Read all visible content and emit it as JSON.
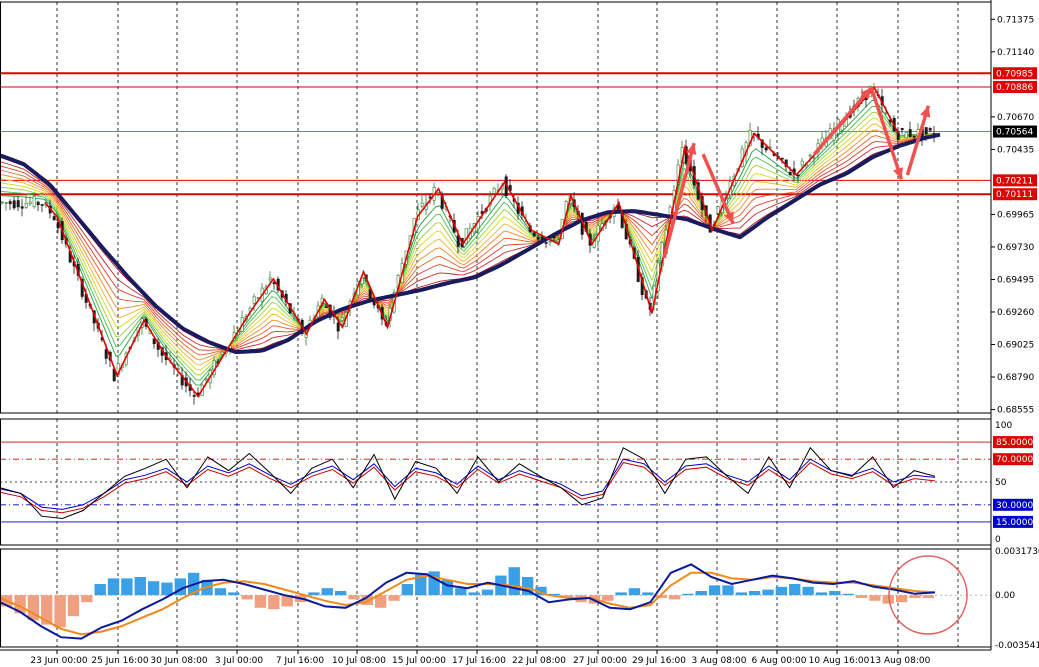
{
  "chart_data": {
    "type": "candlestick",
    "symbol_colors": {
      "background": "#ffffff",
      "bull_candle": "#2e7d32",
      "bear_candle": "#1b1b1b",
      "slow_ma": "#1a1a5e",
      "zigzag": "#e00000",
      "arrows": "#f05050",
      "level_line": "#e00000",
      "current_price_line": "#3355cc"
    },
    "x_ticks": [
      "23 Jun 00:00",
      "25 Jun 16:00",
      "30 Jun 08:00",
      "3 Jul 00:00",
      "7 Jul 16:00",
      "10 Jul 08:00",
      "15 Jul 00:00",
      "17 Jul 16:00",
      "22 Jul 08:00",
      "27 Jul 00:00",
      "29 Jul 16:00",
      "3 Aug 08:00",
      "6 Aug 00:00",
      "10 Aug 16:00",
      "13 Aug 08:00"
    ],
    "main_panel": {
      "y_ticks": [
        "0.71375",
        "0.71140",
        "0.70670",
        "0.70435",
        "0.69965",
        "0.69730",
        "0.69495",
        "0.69260",
        "0.69025",
        "0.68790",
        "0.68555"
      ],
      "ylim": [
        0.6853,
        0.715
      ],
      "levels": [
        {
          "label": "0.70985",
          "value": 0.70985
        },
        {
          "label": "0.70886",
          "value": 0.70886
        },
        {
          "label": "0.70211",
          "value": 0.70211
        },
        {
          "label": "0.70111",
          "value": 0.70111
        }
      ],
      "current_price": {
        "label": "0.70564",
        "value": 0.70564
      },
      "slow_ma": [
        0.704,
        0.7033,
        0.7018,
        0.6995,
        0.6972,
        0.695,
        0.693,
        0.6914,
        0.6904,
        0.6897,
        0.6898,
        0.6906,
        0.6919,
        0.6928,
        0.6934,
        0.6938,
        0.6942,
        0.6947,
        0.6951,
        0.696,
        0.6971,
        0.6982,
        0.6992,
        0.6998,
        0.6999,
        0.6996,
        0.6993,
        0.6986,
        0.698,
        0.6994,
        0.7006,
        0.7018,
        0.7026,
        0.7038,
        0.7046,
        0.7052,
        0.7056
      ],
      "zigzag": [
        [
          -0.2,
          0.7005
        ],
        [
          0.0,
          0.6995
        ],
        [
          1.0,
          0.688
        ],
        [
          1.45,
          0.692
        ],
        [
          1.8,
          0.6895
        ],
        [
          2.35,
          0.6865
        ],
        [
          3.2,
          0.6925
        ],
        [
          3.6,
          0.695
        ],
        [
          4.15,
          0.691
        ],
        [
          4.45,
          0.6935
        ],
        [
          4.75,
          0.6915
        ],
        [
          5.1,
          0.6955
        ],
        [
          5.5,
          0.6915
        ],
        [
          6.0,
          0.6995
        ],
        [
          6.35,
          0.7015
        ],
        [
          6.75,
          0.6975
        ],
        [
          7.45,
          0.702
        ],
        [
          7.9,
          0.6985
        ],
        [
          8.35,
          0.6975
        ],
        [
          8.55,
          0.701
        ],
        [
          8.9,
          0.6975
        ],
        [
          9.35,
          0.7005
        ],
        [
          9.9,
          0.6925
        ],
        [
          10.45,
          0.7045
        ],
        [
          10.9,
          0.6985
        ],
        [
          11.6,
          0.7055
        ],
        [
          12.3,
          0.7025
        ],
        [
          13.6,
          0.7088
        ],
        [
          14.0,
          0.7055
        ]
      ],
      "arrows": [
        {
          "from": [
            10.1,
            0.6965
          ],
          "to": [
            10.6,
            0.7048
          ]
        },
        {
          "from": [
            10.75,
            0.704
          ],
          "to": [
            11.25,
            0.699
          ]
        },
        {
          "from": [
            12.6,
            0.704
          ],
          "to": [
            13.55,
            0.7088
          ]
        },
        {
          "from": [
            13.55,
            0.7088
          ],
          "to": [
            14.05,
            0.7022
          ]
        },
        {
          "from": [
            14.15,
            0.7025
          ],
          "to": [
            14.5,
            0.7075
          ]
        }
      ]
    },
    "rsi_panel": {
      "y_ticks": [
        "100",
        "50",
        "0"
      ],
      "levels": [
        {
          "label": "85.0000",
          "value": 85,
          "color": "#e00000"
        },
        {
          "label": "70.0000",
          "value": 70,
          "color": "#e00000"
        },
        {
          "label": "30.0000",
          "value": 30,
          "color": "#0000cc"
        },
        {
          "label": "15.0000",
          "value": 15,
          "color": "#0000cc"
        }
      ],
      "fast": [
        45,
        40,
        20,
        18,
        25,
        40,
        55,
        62,
        70,
        45,
        72,
        60,
        75,
        58,
        40,
        62,
        70,
        45,
        74,
        35,
        68,
        62,
        40,
        72,
        50,
        66,
        55,
        45,
        30,
        36,
        80,
        70,
        40,
        70,
        72,
        55,
        40,
        72,
        45,
        80,
        60,
        55,
        72,
        45,
        60,
        55
      ],
      "slow": [
        44,
        40,
        28,
        26,
        30,
        40,
        52,
        56,
        62,
        50,
        64,
        58,
        66,
        56,
        48,
        58,
        64,
        52,
        66,
        46,
        62,
        58,
        48,
        64,
        52,
        60,
        54,
        48,
        38,
        42,
        70,
        66,
        50,
        64,
        66,
        56,
        50,
        64,
        52,
        70,
        60,
        56,
        62,
        50,
        56,
        54
      ]
    },
    "macd_panel": {
      "y_ticks": [
        "0.0031736",
        "0.00",
        "-0.003541"
      ],
      "ylim": [
        -0.0037,
        0.0033
      ],
      "histogram": [
        -0.0008,
        -0.0013,
        -0.0018,
        -0.0021,
        -0.0023,
        -0.0015,
        -0.0005,
        0.0008,
        0.0012,
        0.0012,
        0.0013,
        0.001,
        0.0009,
        0.0012,
        0.0016,
        0.0011,
        0.0005,
        0.0002,
        -0.0003,
        -0.0009,
        -0.001,
        -0.0008,
        -0.0005,
        0.0002,
        0.0005,
        0.0003,
        -0.0003,
        -0.0007,
        -0.0009,
        -0.0004,
        0.0008,
        0.0015,
        0.0017,
        0.0011,
        0.0005,
        0.0002,
        0.0004,
        0.0014,
        0.002,
        0.0013,
        0.0006,
        0.0001,
        -0.0002,
        -0.0005,
        -0.0006,
        -0.0004,
        0.0002,
        0.0005,
        0.0002,
        -0.0002,
        -0.0003,
        0.0001,
        0.0003,
        0.0007,
        0.0007,
        0.0002,
        0.0003,
        0.0004,
        0.0006,
        0.0008,
        0.0006,
        0.0002,
        0.0003,
        0.0001,
        -0.0002,
        -0.0004,
        -0.0006,
        -0.0005,
        -0.0002,
        -0.0002
      ],
      "fast_line": [
        -0.0005,
        -0.0012,
        -0.0022,
        -0.003,
        -0.0031,
        -0.0023,
        -0.0018,
        -0.001,
        -0.0003,
        0.0005,
        0.001,
        0.0011,
        0.0008,
        0.0004,
        0.0,
        -0.0003,
        -0.0008,
        -0.0009,
        -0.0002,
        0.0009,
        0.0016,
        0.0015,
        0.0007,
        0.0005,
        0.0009,
        0.0006,
        0.0003,
        -0.0005,
        -0.0003,
        -0.0002,
        -0.0009,
        -0.001,
        -0.0005,
        0.0016,
        0.0022,
        0.0013,
        0.0008,
        0.0011,
        0.0014,
        0.0012,
        0.0009,
        0.0008,
        0.001,
        0.0006,
        0.0004,
        0.0001,
        0.0002
      ],
      "slow_line": [
        -0.0002,
        -0.0008,
        -0.0016,
        -0.0024,
        -0.0028,
        -0.0026,
        -0.0022,
        -0.0016,
        -0.001,
        -0.0002,
        0.0005,
        0.0009,
        0.001,
        0.0008,
        0.0004,
        0.0,
        -0.0004,
        -0.0007,
        -0.0005,
        0.0003,
        0.0011,
        0.0014,
        0.0011,
        0.0008,
        0.0008,
        0.0007,
        0.0005,
        0.0,
        -0.0002,
        -0.0002,
        -0.0006,
        -0.0009,
        -0.0007,
        0.0007,
        0.0016,
        0.0016,
        0.0012,
        0.0011,
        0.0013,
        0.0012,
        0.001,
        0.0009,
        0.0009,
        0.0007,
        0.0005,
        0.0003,
        0.0002
      ]
    }
  }
}
